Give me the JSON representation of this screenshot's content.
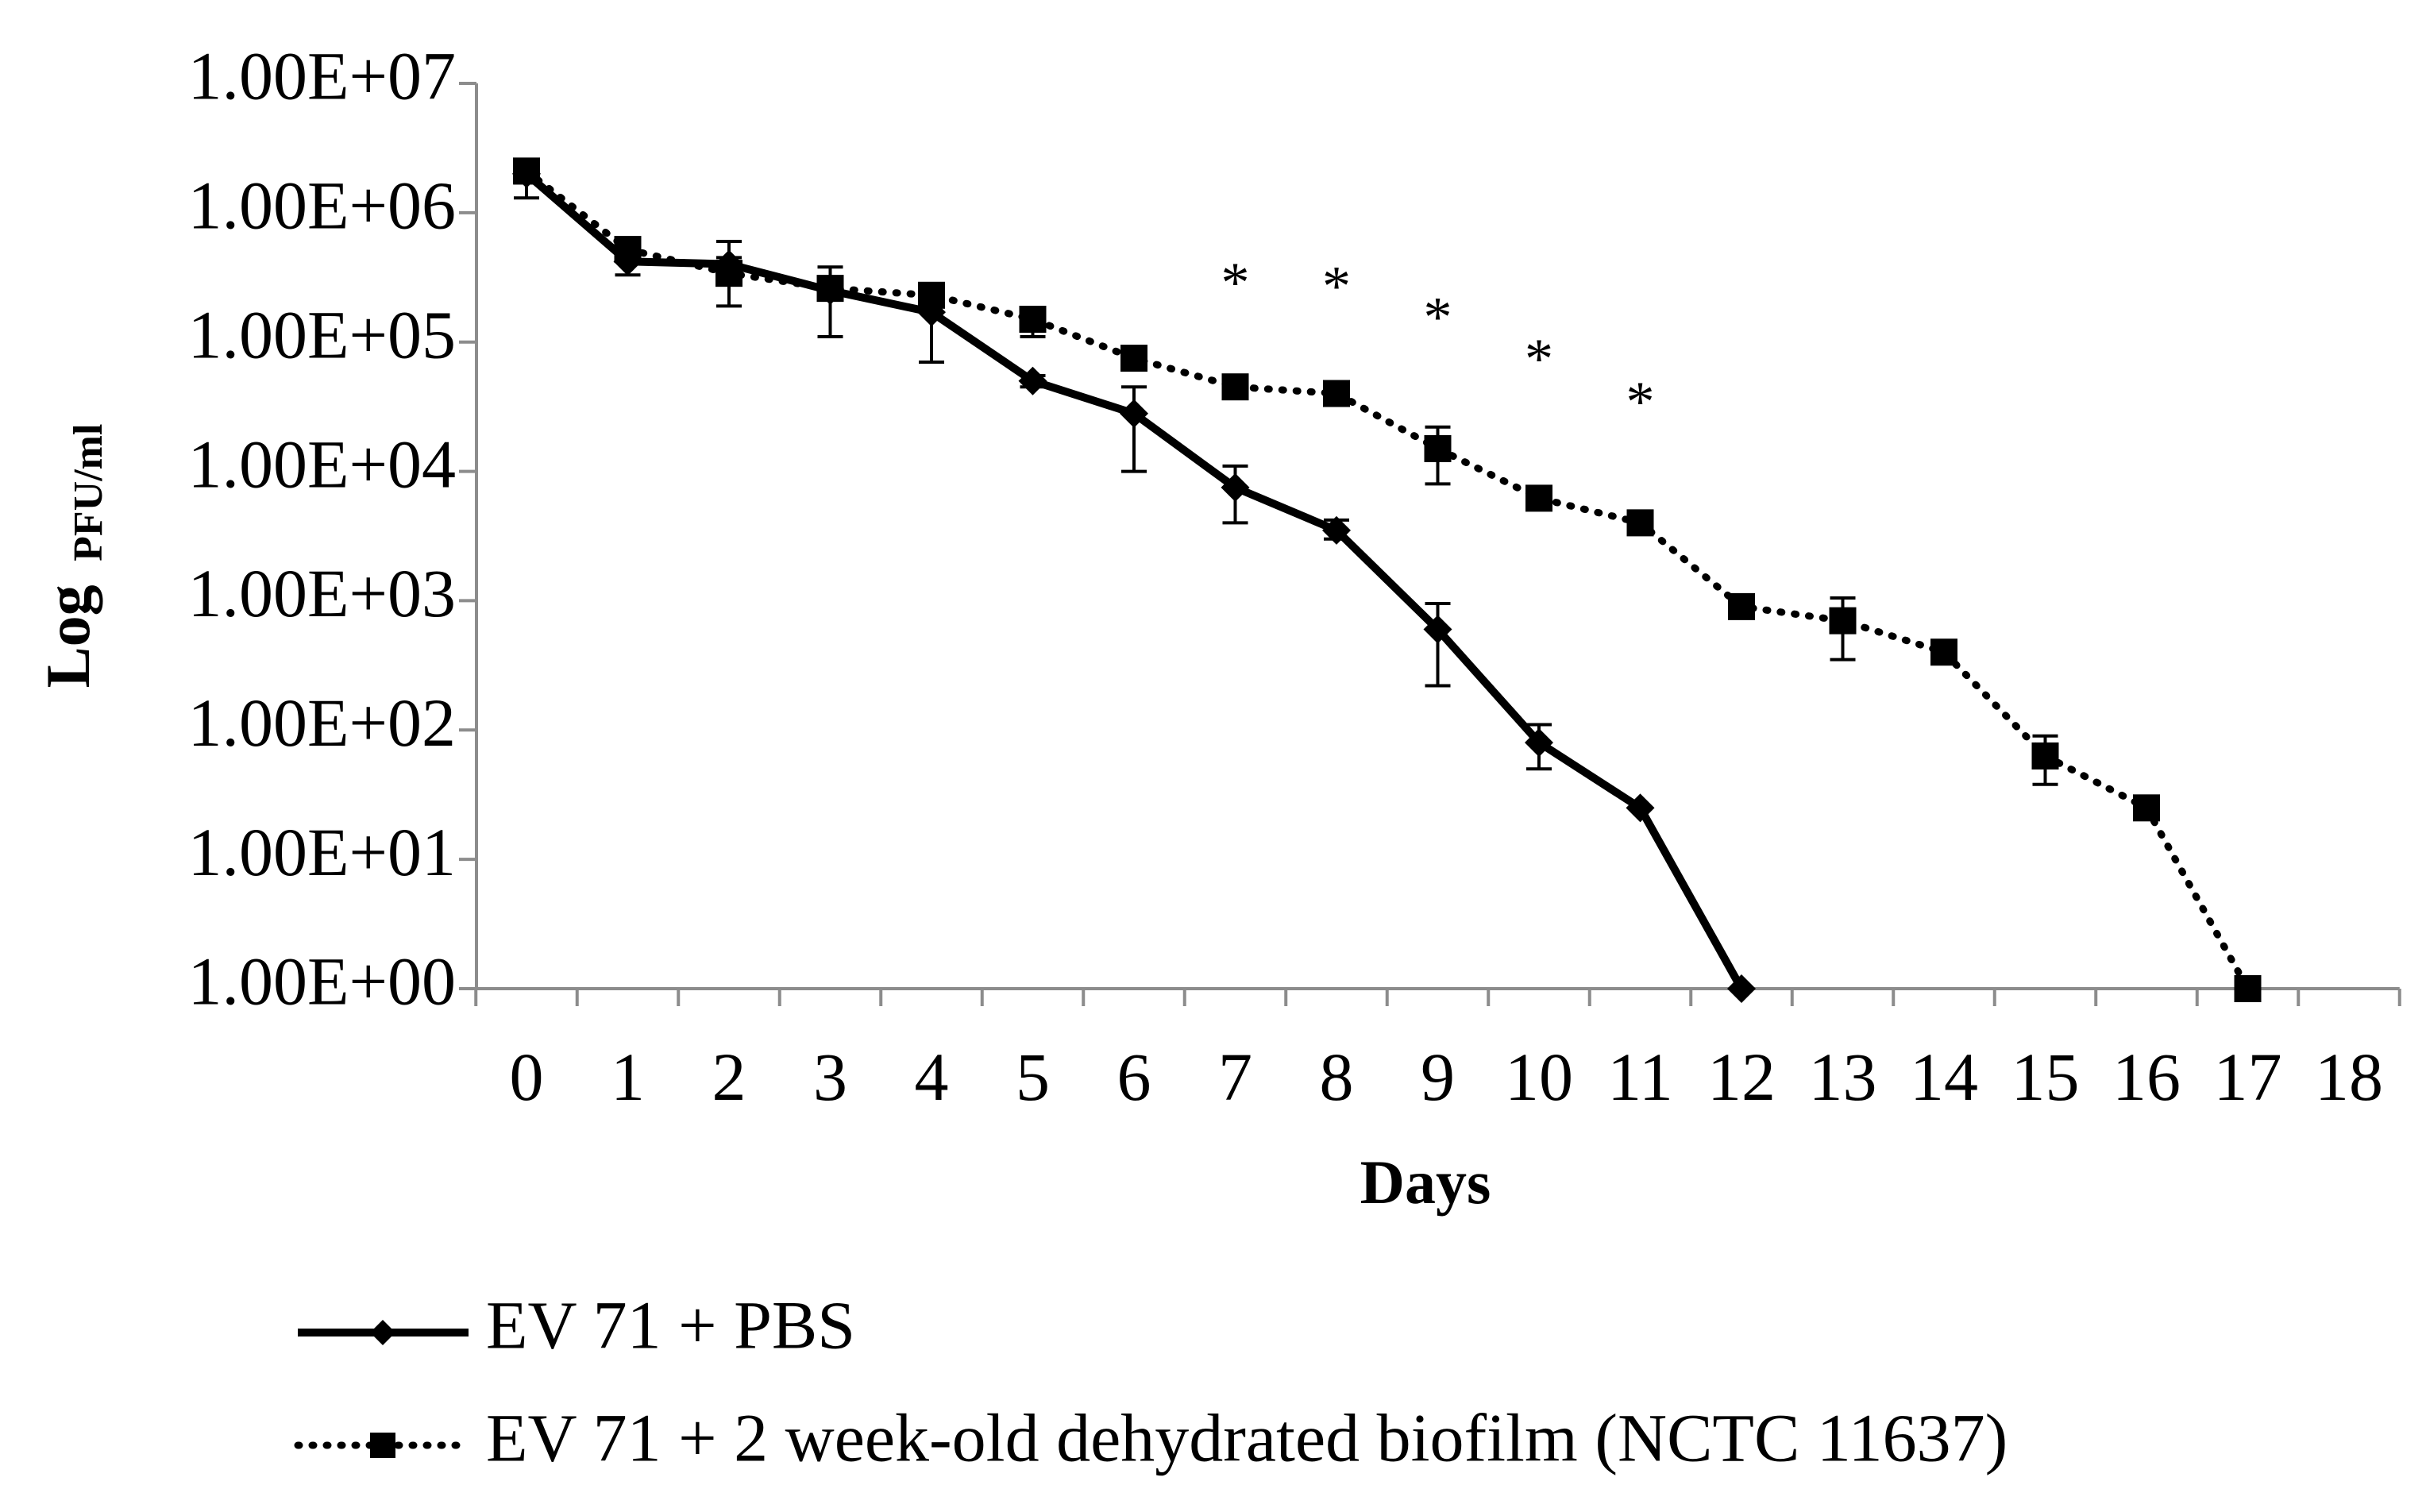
{
  "chart_data": {
    "type": "line",
    "title": "",
    "xlabel": "Days",
    "ylabel_main": "Log",
    "ylabel_sub": "PFU/ml",
    "yscale": "log10",
    "ylim": [
      1,
      10000000
    ],
    "xlim": [
      0,
      18
    ],
    "x_ticks": [
      "0",
      "1",
      "2",
      "3",
      "4",
      "5",
      "6",
      "7",
      "8",
      "9",
      "10",
      "11",
      "12",
      "13",
      "14",
      "15",
      "16",
      "17",
      "18"
    ],
    "y_ticks": [
      "1.00E+00",
      "1.00E+01",
      "1.00E+02",
      "1.00E+03",
      "1.00E+04",
      "1.00E+05",
      "1.00E+06",
      "1.00E+07"
    ],
    "grid": false,
    "legend_position": "bottom",
    "series": [
      {
        "name": "EV 71 + PBS",
        "line_style": "solid",
        "marker": "diamond",
        "color": "#000000",
        "x": [
          0,
          1,
          2,
          3,
          4,
          5,
          6,
          7,
          8,
          9,
          10,
          11,
          12
        ],
        "values": [
          2000000,
          420000,
          400000,
          250000,
          170000,
          50000,
          28000,
          7500,
          3500,
          600,
          80,
          25,
          1
        ],
        "err_low": [
          1300000,
          330000,
          300000,
          110000,
          70000,
          45000,
          10000,
          4000,
          3000,
          220,
          50,
          25,
          1
        ],
        "err_high": [
          2300000,
          600000,
          600000,
          380000,
          230000,
          55000,
          45000,
          11000,
          4200,
          950,
          110,
          25,
          1
        ]
      },
      {
        "name": "EV 71 + 2 week-old dehydrated biofilm (NCTC 11637)",
        "line_style": "dotted",
        "marker": "square",
        "color": "#000000",
        "x": [
          0,
          1,
          2,
          3,
          4,
          5,
          6,
          7,
          8,
          9,
          10,
          11,
          12,
          13,
          14,
          15,
          16,
          17
        ],
        "values": [
          2100000,
          520000,
          340000,
          260000,
          230000,
          150000,
          75000,
          45000,
          40000,
          15000,
          6200,
          4000,
          900,
          700,
          400,
          63,
          25,
          1
        ],
        "err_low": [
          1700000,
          480000,
          190000,
          220000,
          200000,
          110000,
          65000,
          40000,
          36000,
          8000,
          5500,
          3500,
          800,
          350,
          350,
          38,
          22,
          1
        ],
        "err_high": [
          2400000,
          560000,
          450000,
          300000,
          260000,
          170000,
          85000,
          50000,
          44000,
          22000,
          7000,
          4500,
          1000,
          1050,
          450,
          90,
          28,
          1
        ]
      }
    ],
    "annotations": [
      {
        "x": 7,
        "y": 350000,
        "text": "*"
      },
      {
        "x": 8,
        "y": 330000,
        "text": "*"
      },
      {
        "x": 9,
        "y": 190000,
        "text": "*"
      },
      {
        "x": 10,
        "y": 90000,
        "text": "*"
      },
      {
        "x": 11,
        "y": 42000,
        "text": "*"
      }
    ]
  }
}
